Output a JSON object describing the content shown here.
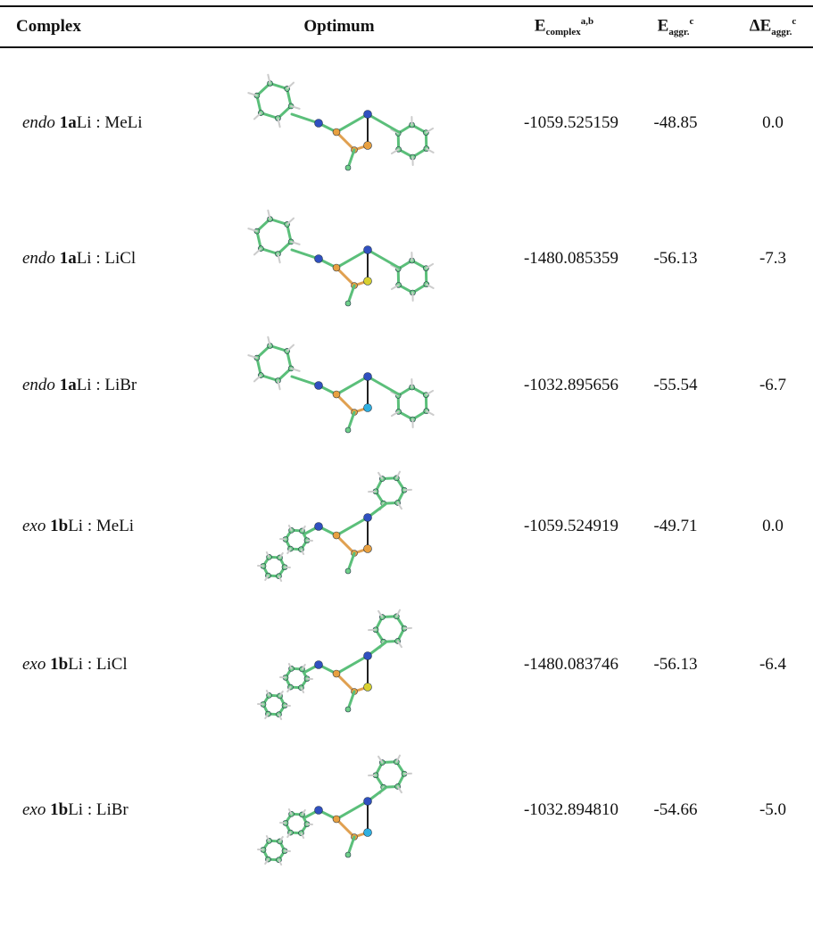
{
  "table": {
    "header": [
      {
        "main": "Complex"
      },
      {
        "main": "Optimum"
      },
      {
        "main": "E",
        "sub": "complex",
        "sup": "a,b"
      },
      {
        "main": "E",
        "sub": "aggr.",
        "sup": "c"
      },
      {
        "main": "ΔE",
        "sub": "aggr.",
        "sup": "c"
      }
    ],
    "rows": [
      {
        "prefix": "endo",
        "compound": "1a",
        "rest": "Li : MeLi",
        "e_complex": "-1059.525159",
        "e_aggr": "-48.85",
        "delta": "0.0"
      },
      {
        "prefix": "endo",
        "compound": "1a",
        "rest": "Li : LiCl",
        "e_complex": "-1480.085359",
        "e_aggr": "-56.13",
        "delta": "-7.3"
      },
      {
        "prefix": "endo",
        "compound": "1a",
        "rest": "Li : LiBr",
        "e_complex": "-1032.895656",
        "e_aggr": "-55.54",
        "delta": "-6.7"
      },
      {
        "prefix": "exo",
        "compound": "1b",
        "rest": "Li : MeLi",
        "e_complex": "-1059.524919",
        "e_aggr": "-49.71",
        "delta": "0.0"
      },
      {
        "prefix": "exo",
        "compound": "1b",
        "rest": "Li : LiCl",
        "e_complex": "-1480.083746",
        "e_aggr": "-56.13",
        "delta": "-6.4"
      },
      {
        "prefix": "exo",
        "compound": "1b",
        "rest": "Li : LiBr",
        "e_complex": "-1032.894810",
        "e_aggr": "-54.66",
        "delta": "-5.0"
      }
    ]
  }
}
